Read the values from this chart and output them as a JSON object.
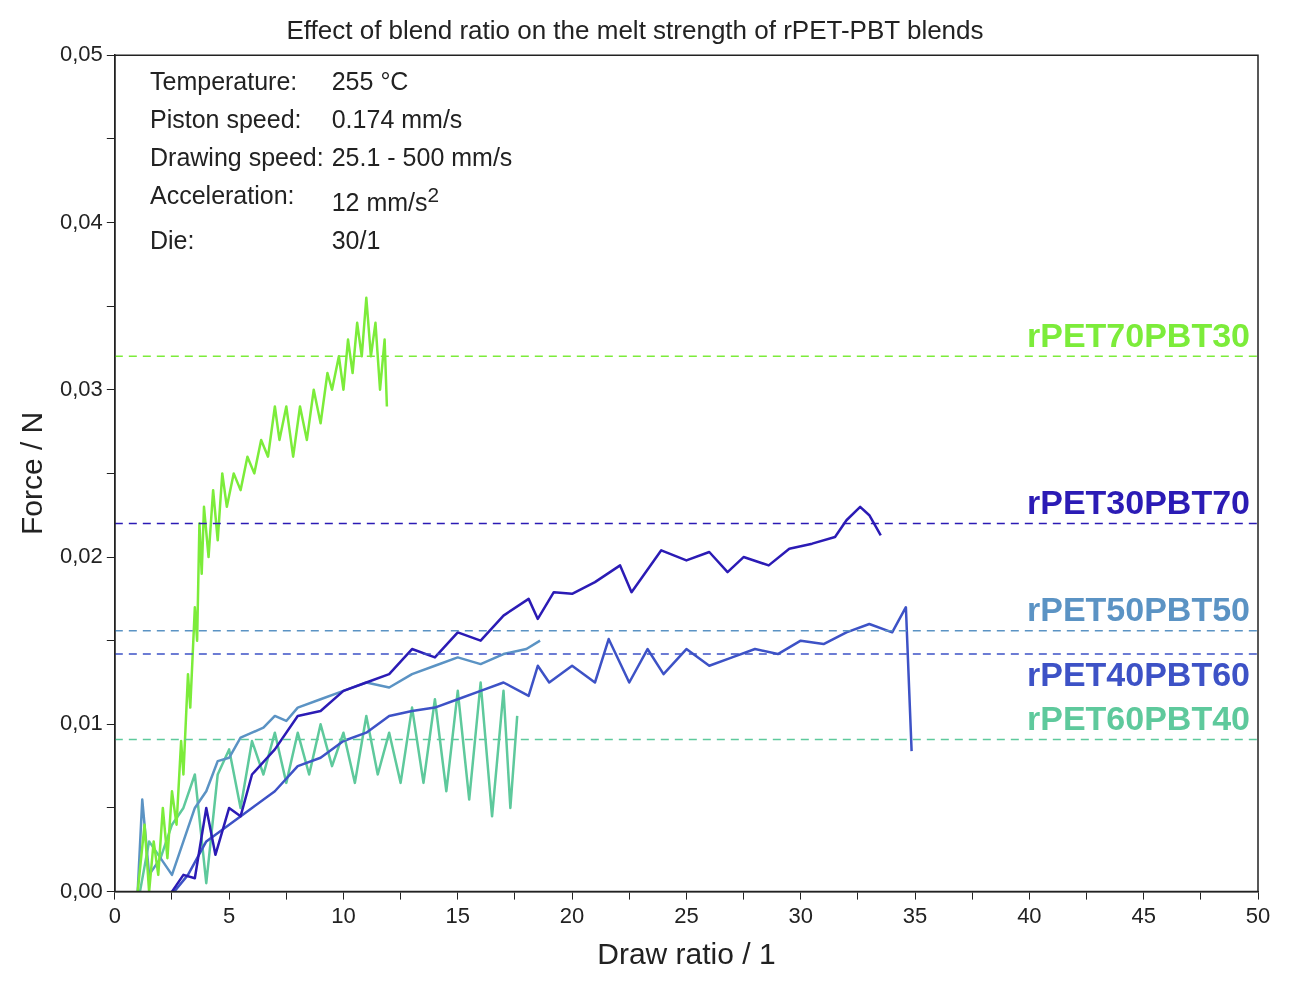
{
  "chart_data": {
    "type": "line",
    "title": "Effect of blend ratio on the melt strength of rPET-PBT blends",
    "xlabel": "Draw ratio / 1",
    "ylabel": "Force / N",
    "xlim": [
      0,
      50
    ],
    "xticks": [
      0,
      {
        "value": 2.5,
        "label": null
      },
      5,
      {
        "value": 7.5,
        "label": null
      },
      10,
      {
        "value": 12.5,
        "label": null
      },
      15,
      {
        "value": 17.5,
        "label": null
      },
      20,
      {
        "value": 22.5,
        "label": null
      },
      25,
      {
        "value": 27.5,
        "label": null
      },
      30,
      {
        "value": 32.5,
        "label": null
      },
      35,
      {
        "value": 37.5,
        "label": null
      },
      40,
      {
        "value": 42.5,
        "label": null
      },
      45,
      {
        "value": 47.5,
        "label": null
      },
      50
    ],
    "ylim": [
      0,
      0.05
    ],
    "yticks": [
      {
        "value": 0,
        "label": "0,00"
      },
      {
        "value": 0.005,
        "label": null
      },
      {
        "value": 0.01,
        "label": "0,01"
      },
      {
        "value": 0.015,
        "label": null
      },
      {
        "value": 0.02,
        "label": "0,02"
      },
      {
        "value": 0.025,
        "label": null
      },
      {
        "value": 0.03,
        "label": "0,03"
      },
      {
        "value": 0.035,
        "label": null
      },
      {
        "value": 0.04,
        "label": "0,04"
      },
      {
        "value": 0.045,
        "label": null
      },
      {
        "value": 0.05,
        "label": "0,05"
      }
    ],
    "grid": false,
    "legend": false,
    "line_style": "solid",
    "annotations": [
      "Temperature: 255 °C",
      "Piston speed: 0.174 mm/s",
      "Drawing speed: 25.1 - 500 mm/s",
      "Acceleration: 12 mm/s$^{2}$",
      "Die: 30/1"
    ],
    "ref_lines": [
      {
        "axis": "y",
        "value": 0.032,
        "color": "#7cec3a",
        "line_style": "dashed"
      },
      {
        "axis": "y",
        "value": 0.022,
        "color": "#2b1bb5",
        "line_style": "dashed"
      },
      {
        "axis": "y",
        "value": 0.0156,
        "color": "#5b93c4",
        "line_style": "dashed"
      },
      {
        "axis": "y",
        "value": 0.0142,
        "color": "#3d52c6",
        "line_style": "dashed"
      },
      {
        "axis": "y",
        "value": 0.0091,
        "color": "#5ec99c",
        "line_style": "dashed"
      }
    ],
    "series": [
      {
        "name": "rPET70PBT30",
        "color": "#7cec3a",
        "x": [
          1.0,
          1.3,
          1.5,
          1.7,
          1.9,
          2.1,
          2.3,
          2.5,
          2.7,
          2.9,
          3.0,
          3.2,
          3.3,
          3.5,
          3.6,
          3.7,
          3.8,
          3.9,
          4.1,
          4.3,
          4.5,
          4.7,
          4.9,
          5.2,
          5.5,
          5.8,
          6.1,
          6.4,
          6.7,
          7.0,
          7.2,
          7.5,
          7.8,
          8.1,
          8.4,
          8.7,
          9.0,
          9.3,
          9.5,
          9.8,
          10.0,
          10.2,
          10.4,
          10.6,
          10.8,
          11.0,
          11.2,
          11.4,
          11.6,
          11.8,
          11.9
        ],
        "values": [
          0.0,
          0.004,
          0.0,
          0.003,
          0.001,
          0.005,
          0.002,
          0.006,
          0.004,
          0.009,
          0.007,
          0.013,
          0.011,
          0.017,
          0.015,
          0.022,
          0.019,
          0.023,
          0.02,
          0.024,
          0.021,
          0.025,
          0.023,
          0.025,
          0.024,
          0.026,
          0.025,
          0.027,
          0.026,
          0.029,
          0.027,
          0.029,
          0.026,
          0.029,
          0.027,
          0.03,
          0.028,
          0.031,
          0.03,
          0.032,
          0.03,
          0.033,
          0.031,
          0.034,
          0.032,
          0.0355,
          0.032,
          0.034,
          0.03,
          0.033,
          0.029
        ]
      },
      {
        "name": "rPET30PBT70",
        "color": "#2b1bb5",
        "x": [
          2.5,
          3.0,
          3.5,
          4.0,
          4.4,
          5.0,
          5.5,
          6.0,
          7.0,
          8.0,
          9.0,
          10.0,
          11.0,
          12.0,
          13.0,
          14.0,
          15.0,
          16.0,
          17.0,
          18.1,
          18.5,
          19.2,
          20.0,
          21.0,
          22.1,
          22.6,
          23.9,
          25.0,
          26.0,
          26.8,
          27.5,
          28.6,
          29.5,
          30.5,
          31.5,
          32.0,
          32.6,
          33.0,
          33.5
        ],
        "values": [
          0.0,
          0.001,
          0.0008,
          0.005,
          0.0022,
          0.005,
          0.0045,
          0.007,
          0.0085,
          0.0105,
          0.0108,
          0.012,
          0.0125,
          0.013,
          0.0145,
          0.014,
          0.0155,
          0.015,
          0.0165,
          0.0175,
          0.0163,
          0.0179,
          0.0178,
          0.0185,
          0.0195,
          0.0179,
          0.0204,
          0.0198,
          0.0203,
          0.0191,
          0.02,
          0.0195,
          0.0205,
          0.0208,
          0.0212,
          0.0222,
          0.023,
          0.0225,
          0.0213
        ]
      },
      {
        "name": "rPET50PBT50",
        "color": "#5b93c4",
        "x": [
          1.0,
          1.2,
          1.5,
          2.0,
          2.5,
          3.0,
          3.5,
          4.0,
          4.5,
          5.0,
          5.5,
          6.0,
          6.5,
          7.0,
          7.5,
          8.0,
          9.0,
          10.0,
          11.0,
          12.0,
          13.0,
          14.0,
          15.0,
          16.0,
          17.0,
          18.0,
          18.6
        ],
        "values": [
          0.0,
          0.0055,
          0.001,
          0.002,
          0.001,
          0.003,
          0.005,
          0.006,
          0.0078,
          0.008,
          0.0092,
          0.0095,
          0.0098,
          0.0105,
          0.0102,
          0.011,
          0.0115,
          0.012,
          0.0125,
          0.0122,
          0.013,
          0.0135,
          0.014,
          0.0136,
          0.0142,
          0.0145,
          0.015
        ]
      },
      {
        "name": "rPET40PBT60",
        "color": "#3d52c6",
        "x": [
          2.6,
          3.2,
          4.0,
          5.0,
          6.0,
          7.0,
          8.0,
          9.0,
          10.0,
          11.0,
          12.0,
          13.0,
          14.0,
          15.0,
          16.0,
          17.0,
          18.1,
          18.5,
          19.0,
          20.0,
          21.0,
          21.6,
          22.5,
          23.3,
          24.0,
          25.0,
          26.0,
          27.0,
          28.0,
          29.0,
          30.0,
          31.0,
          32.0,
          33.0,
          34.0,
          34.6,
          34.85
        ],
        "values": [
          0.0,
          0.001,
          0.003,
          0.004,
          0.005,
          0.006,
          0.0075,
          0.008,
          0.009,
          0.0095,
          0.0105,
          0.0108,
          0.011,
          0.0115,
          0.012,
          0.0125,
          0.0117,
          0.0135,
          0.0125,
          0.0135,
          0.0125,
          0.0151,
          0.0125,
          0.0145,
          0.013,
          0.0145,
          0.0135,
          0.014,
          0.0145,
          0.0142,
          0.015,
          0.0148,
          0.0155,
          0.016,
          0.0155,
          0.017,
          0.0084
        ]
      },
      {
        "name": "rPET60PBT40",
        "color": "#5ec99c",
        "x": [
          1.1,
          1.5,
          2.0,
          2.5,
          3.0,
          3.5,
          4.0,
          4.5,
          5.0,
          5.5,
          6.0,
          6.5,
          7.0,
          7.5,
          8.0,
          8.5,
          9.0,
          9.5,
          10.0,
          10.5,
          11.0,
          11.5,
          12.0,
          12.5,
          13.0,
          13.5,
          14.0,
          14.5,
          15.0,
          15.5,
          16.0,
          16.5,
          17.0,
          17.3,
          17.6
        ],
        "values": [
          0.0,
          0.003,
          0.002,
          0.004,
          0.005,
          0.007,
          0.0005,
          0.007,
          0.0085,
          0.005,
          0.009,
          0.007,
          0.0095,
          0.0065,
          0.0095,
          0.007,
          0.01,
          0.0075,
          0.0095,
          0.0065,
          0.0105,
          0.007,
          0.0095,
          0.0065,
          0.011,
          0.0065,
          0.0115,
          0.006,
          0.012,
          0.0055,
          0.0125,
          0.0045,
          0.012,
          0.005,
          0.0105
        ]
      }
    ]
  }
}
